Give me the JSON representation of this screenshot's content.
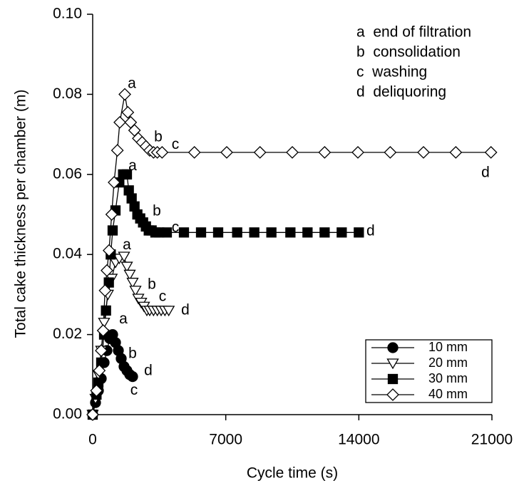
{
  "chart_data": {
    "type": "line",
    "xlabel": "Cycle time (s)",
    "ylabel": "Total cake thickness per chamber (m)",
    "xlim": [
      0,
      21000
    ],
    "ylim": [
      0,
      0.1
    ],
    "xticks": [
      0,
      7000,
      14000,
      21000
    ],
    "yticks": [
      {
        "value": 0,
        "label": "0.00"
      },
      {
        "value": 0.02,
        "label": "0.02"
      },
      {
        "value": 0.04,
        "label": "0.04"
      },
      {
        "value": 0.06,
        "label": "0.06"
      },
      {
        "value": 0.08,
        "label": "0.08"
      },
      {
        "value": 0.1,
        "label": "0.10"
      }
    ],
    "grid": false,
    "legend": "lower right",
    "notes": [
      "a  end of filtration",
      "b  consolidation",
      "c  washing",
      "d  deliquoring"
    ],
    "series": [
      {
        "name": "10 mm",
        "color": "#000000",
        "marker": "circle",
        "marker_fill": "#000000",
        "x": [
          0,
          150,
          300,
          450,
          600,
          750,
          900,
          1050,
          1200,
          1350,
          1500,
          1650,
          1800,
          1950,
          2100
        ],
        "values": [
          0,
          0.003,
          0.006,
          0.009,
          0.013,
          0.016,
          0.019,
          0.02,
          0.018,
          0.016,
          0.014,
          0.012,
          0.011,
          0.01,
          0.0095
        ]
      },
      {
        "name": "20 mm",
        "color": "#000000",
        "marker": "triangle-down",
        "marker_fill": "#ffffff",
        "x": [
          0,
          150,
          300,
          450,
          600,
          800,
          1000,
          1200,
          1400,
          1650,
          1800,
          1950,
          2100,
          2250,
          2400,
          2550,
          2700,
          2850,
          3000,
          3200,
          3400,
          3600,
          3800,
          4000
        ],
        "values": [
          0,
          0.004,
          0.01,
          0.016,
          0.023,
          0.03,
          0.034,
          0.038,
          0.039,
          0.0395,
          0.037,
          0.035,
          0.033,
          0.031,
          0.029,
          0.028,
          0.027,
          0.026,
          0.026,
          0.026,
          0.026,
          0.026,
          0.026,
          0.026
        ]
      },
      {
        "name": "30 mm",
        "color": "#000000",
        "marker": "square",
        "marker_fill": "#000000",
        "x": [
          0,
          200,
          300,
          450,
          600,
          700,
          850,
          950,
          1050,
          1200,
          1400,
          1600,
          1800,
          1900,
          2050,
          2200,
          2350,
          2500,
          2650,
          2800,
          2950,
          3100,
          3300,
          3500,
          3900,
          4800,
          5700,
          6600,
          7600,
          8500,
          9400,
          10400,
          11300,
          12200,
          13100,
          14000
        ],
        "values": [
          0,
          0.005,
          0.008,
          0.013,
          0.02,
          0.026,
          0.033,
          0.04,
          0.046,
          0.051,
          0.058,
          0.06,
          0.06,
          0.056,
          0.054,
          0.052,
          0.05,
          0.049,
          0.048,
          0.047,
          0.046,
          0.046,
          0.0455,
          0.0455,
          0.0455,
          0.0455,
          0.0455,
          0.0455,
          0.0455,
          0.0455,
          0.0455,
          0.0455,
          0.0455,
          0.0455,
          0.0455,
          0.0455
        ]
      },
      {
        "name": "40 mm",
        "color": "#000000",
        "marker": "diamond",
        "marker_fill": "#ffffff",
        "x": [
          0,
          200,
          350,
          450,
          550,
          650,
          750,
          860,
          1000,
          1125,
          1300,
          1425,
          1690,
          1850,
          2000,
          2200,
          2400,
          2600,
          2800,
          3000,
          3200,
          3400,
          3650,
          5350,
          7050,
          8800,
          10500,
          12200,
          13950,
          15650,
          17400,
          19100,
          20950
        ],
        "values": [
          0,
          0.006,
          0.011,
          0.016,
          0.021,
          0.031,
          0.036,
          0.041,
          0.05,
          0.058,
          0.066,
          0.073,
          0.08,
          0.0755,
          0.073,
          0.071,
          0.069,
          0.068,
          0.067,
          0.066,
          0.0655,
          0.0655,
          0.0655,
          0.0655,
          0.0655,
          0.0655,
          0.0655,
          0.0655,
          0.0655,
          0.0655,
          0.0655,
          0.0655,
          0.0655
        ]
      }
    ],
    "annotations": [
      {
        "text": "a",
        "x": 2060,
        "y": 0.0826
      },
      {
        "text": "b",
        "x": 3450,
        "y": 0.0692
      },
      {
        "text": "c",
        "x": 4350,
        "y": 0.0674
      },
      {
        "text": "d",
        "x": 20660,
        "y": 0.0603
      },
      {
        "text": "a",
        "x": 2100,
        "y": 0.062
      },
      {
        "text": "b",
        "x": 3375,
        "y": 0.0507
      },
      {
        "text": "c",
        "x": 4350,
        "y": 0.0466
      },
      {
        "text": "d",
        "x": 14620,
        "y": 0.0457
      },
      {
        "text": "a",
        "x": 1800,
        "y": 0.0423
      },
      {
        "text": "b",
        "x": 3110,
        "y": 0.0324
      },
      {
        "text": "c",
        "x": 3675,
        "y": 0.0294
      },
      {
        "text": "d",
        "x": 4875,
        "y": 0.026
      },
      {
        "text": "a",
        "x": 1610,
        "y": 0.0238
      },
      {
        "text": "b",
        "x": 2100,
        "y": 0.0151
      },
      {
        "text": "c",
        "x": 2175,
        "y": 0.006
      },
      {
        "text": "d",
        "x": 2925,
        "y": 0.0109
      }
    ]
  }
}
